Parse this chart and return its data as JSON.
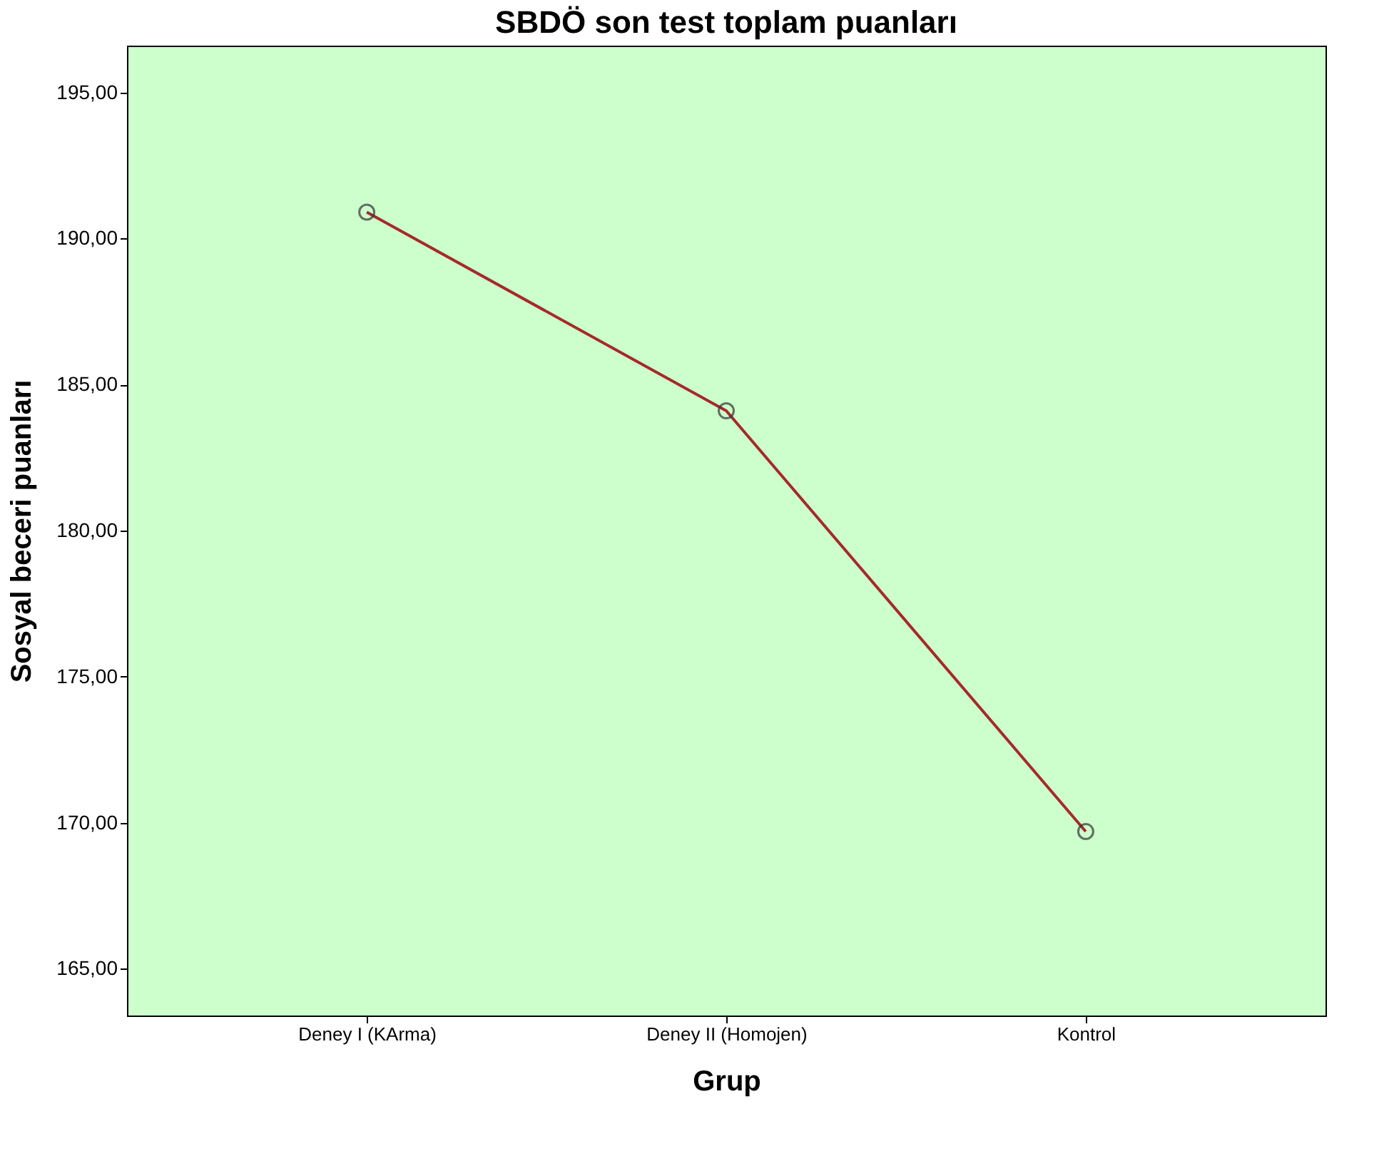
{
  "chart_data": {
    "type": "line",
    "title": "SBDÖ son test toplam puanları",
    "xlabel": "Grup",
    "ylabel": "Sosyal beceri puanları",
    "categories": [
      "Deney I (KArma)",
      "Deney II (Homojen)",
      "Kontrol"
    ],
    "series": [
      {
        "color": "#a52a2a",
        "values": [
          190.9,
          184.1,
          169.7
        ]
      }
    ],
    "ylim": [
      163.4,
      196.6
    ],
    "yticks": [
      {
        "value": 165,
        "label": "165,00"
      },
      {
        "value": 170,
        "label": "170,00"
      },
      {
        "value": 175,
        "label": "175,00"
      },
      {
        "value": 180,
        "label": "180,00"
      },
      {
        "value": 185,
        "label": "185,00"
      },
      {
        "value": 190,
        "label": "190,00"
      },
      {
        "value": 195,
        "label": "195,00"
      }
    ],
    "grid": false,
    "marker": "circle",
    "line_style": "solid"
  }
}
